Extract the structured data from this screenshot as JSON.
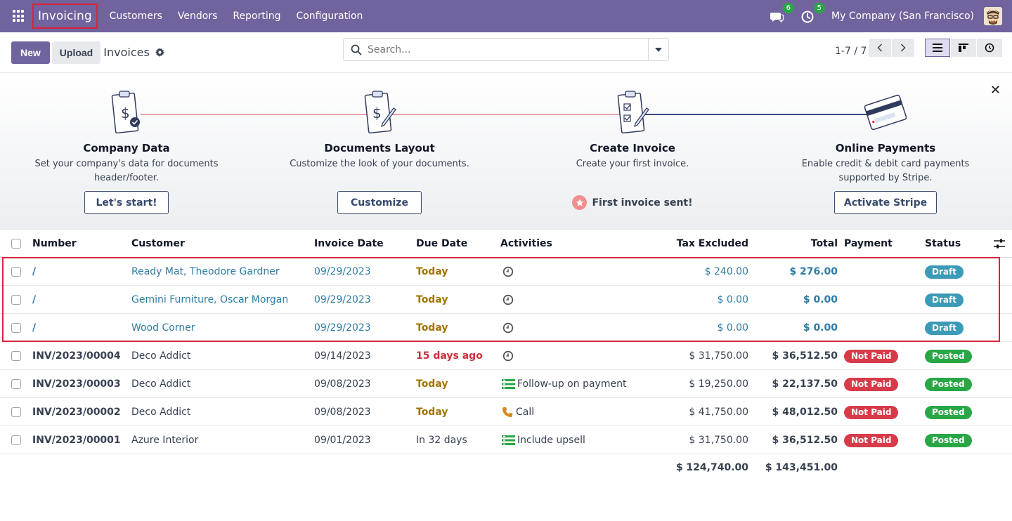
{
  "navbar": {
    "brand": "Invoicing",
    "menu": [
      "Customers",
      "Vendors",
      "Reporting",
      "Configuration"
    ],
    "messages_count": "6",
    "activities_count": "5",
    "company": "My Company (San Francisco)"
  },
  "control": {
    "new_label": "New",
    "upload_label": "Upload",
    "title": "Invoices",
    "search_placeholder": "Search...",
    "pager": "1-7 / 7"
  },
  "onboarding": {
    "steps": [
      {
        "title": "Company Data",
        "desc": "Set your company's data for documents header/footer.",
        "button": "Let's start!"
      },
      {
        "title": "Documents Layout",
        "desc": "Customize the look of your documents.",
        "button": "Customize"
      },
      {
        "title": "Create Invoice",
        "desc": "Create your first invoice.",
        "done": "First invoice sent!"
      },
      {
        "title": "Online Payments",
        "desc": "Enable credit & debit card payments supported by Stripe.",
        "button": "Activate Stripe"
      }
    ]
  },
  "table": {
    "headers": {
      "number": "Number",
      "customer": "Customer",
      "invoice_date": "Invoice Date",
      "due_date": "Due Date",
      "activities": "Activities",
      "tax_excluded": "Tax Excluded",
      "total": "Total",
      "payment": "Payment",
      "status": "Status"
    },
    "rows": [
      {
        "number": "/",
        "customer": "Ready Mat, Theodore Gardner",
        "invoice_date": "09/29/2023",
        "due_date": "Today",
        "activity": "",
        "tax_excluded": "$ 240.00",
        "total": "$ 276.00",
        "payment": "",
        "status": "Draft"
      },
      {
        "number": "/",
        "customer": "Gemini Furniture, Oscar Morgan",
        "invoice_date": "09/29/2023",
        "due_date": "Today",
        "activity": "",
        "tax_excluded": "$ 0.00",
        "total": "$ 0.00",
        "payment": "",
        "status": "Draft"
      },
      {
        "number": "/",
        "customer": "Wood Corner",
        "invoice_date": "09/29/2023",
        "due_date": "Today",
        "activity": "",
        "tax_excluded": "$ 0.00",
        "total": "$ 0.00",
        "payment": "",
        "status": "Draft"
      },
      {
        "number": "INV/2023/00004",
        "customer": "Deco Addict",
        "invoice_date": "09/14/2023",
        "due_date": "15 days ago",
        "activity": "",
        "tax_excluded": "$ 31,750.00",
        "total": "$ 36,512.50",
        "payment": "Not Paid",
        "status": "Posted"
      },
      {
        "number": "INV/2023/00003",
        "customer": "Deco Addict",
        "invoice_date": "09/08/2023",
        "due_date": "Today",
        "activity": "Follow-up on payment",
        "tax_excluded": "$ 19,250.00",
        "total": "$ 22,137.50",
        "payment": "Not Paid",
        "status": "Posted"
      },
      {
        "number": "INV/2023/00002",
        "customer": "Deco Addict",
        "invoice_date": "09/08/2023",
        "due_date": "Today",
        "activity": "Call",
        "tax_excluded": "$ 41,750.00",
        "total": "$ 48,012.50",
        "payment": "Not Paid",
        "status": "Posted"
      },
      {
        "number": "INV/2023/00001",
        "customer": "Azure Interior",
        "invoice_date": "09/01/2023",
        "due_date": "In 32 days",
        "activity": "Include upsell",
        "tax_excluded": "$ 31,750.00",
        "total": "$ 36,512.50",
        "payment": "Not Paid",
        "status": "Posted"
      }
    ],
    "totals": {
      "tax_excluded": "$ 124,740.00",
      "total": "$ 143,451.00"
    }
  },
  "colors": {
    "brand": "#71639e",
    "link": "#2d7ca5",
    "warn": "#a07300",
    "danger": "#c8313b",
    "success": "#28a745"
  }
}
